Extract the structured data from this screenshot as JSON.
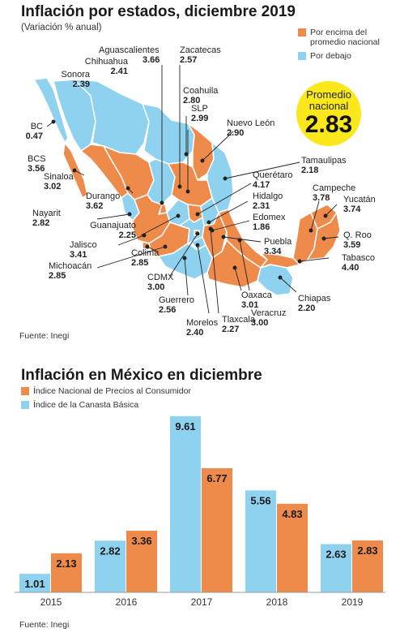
{
  "map": {
    "title": "Inflación por estados, diciembre 2019",
    "subtitle": "(Variación % anual)",
    "legend": [
      {
        "label": "Por encima del promedio nacional",
        "color": "#ee8a4a"
      },
      {
        "label": "Por debajo",
        "color": "#8fd2ef"
      }
    ],
    "average_label": "Promedio nacional",
    "average_value": "2.83",
    "source": "Fuente: Inegi",
    "states": [
      {
        "name": "BC",
        "value": "0.47",
        "status": "below"
      },
      {
        "name": "Sonora",
        "value": "2.39",
        "status": "below"
      },
      {
        "name": "Chihuahua",
        "value": "2.41",
        "status": "below"
      },
      {
        "name": "Aguascalientes",
        "value": "3.66",
        "status": "above"
      },
      {
        "name": "Zacatecas",
        "value": "2.57",
        "status": "below"
      },
      {
        "name": "Coahuila",
        "value": "2.80",
        "status": "below"
      },
      {
        "name": "SLP",
        "value": "2.99",
        "status": "above"
      },
      {
        "name": "Nuevo León",
        "value": "2.90",
        "status": "above"
      },
      {
        "name": "Tamaulipas",
        "value": "2.18",
        "status": "below"
      },
      {
        "name": "BCS",
        "value": "3.56",
        "status": "above"
      },
      {
        "name": "Sinaloa",
        "value": "3.02",
        "status": "above"
      },
      {
        "name": "Durango",
        "value": "3.62",
        "status": "above"
      },
      {
        "name": "Querétaro",
        "value": "4.17",
        "status": "above"
      },
      {
        "name": "Hidalgo",
        "value": "2.31",
        "status": "below"
      },
      {
        "name": "Edomex",
        "value": "1.86",
        "status": "below"
      },
      {
        "name": "Campeche",
        "value": "3.78",
        "status": "above"
      },
      {
        "name": "Yucatán",
        "value": "3.74",
        "status": "above"
      },
      {
        "name": "Q. Roo",
        "value": "3.59",
        "status": "above"
      },
      {
        "name": "Tabasco",
        "value": "4.40",
        "status": "above"
      },
      {
        "name": "Nayarit",
        "value": "2.82",
        "status": "below"
      },
      {
        "name": "Guanajuato",
        "value": "2.25",
        "status": "below"
      },
      {
        "name": "Jalisco",
        "value": "3.41",
        "status": "above"
      },
      {
        "name": "Colima",
        "value": "2.85",
        "status": "above"
      },
      {
        "name": "Michoacán",
        "value": "2.85",
        "status": "above"
      },
      {
        "name": "CDMX",
        "value": "3.00",
        "status": "above"
      },
      {
        "name": "Puebla",
        "value": "3.34",
        "status": "above"
      },
      {
        "name": "Guerrero",
        "value": "2.56",
        "status": "below"
      },
      {
        "name": "Morelos",
        "value": "2.40",
        "status": "below"
      },
      {
        "name": "Tlaxcala",
        "value": "2.27",
        "status": "below"
      },
      {
        "name": "Oaxaca",
        "value": "3.01",
        "status": "above"
      },
      {
        "name": "Veracruz",
        "value": "3.00",
        "status": "above"
      },
      {
        "name": "Chiapas",
        "value": "2.20",
        "status": "below"
      }
    ]
  },
  "bars": {
    "title": "Inflación en México en diciembre",
    "source": "Fuente: Inegi"
  },
  "chart_data": {
    "type": "bar",
    "title": "Inflación en México en diciembre",
    "categories": [
      "2015",
      "2016",
      "2017",
      "2018",
      "2019"
    ],
    "series": [
      {
        "name": "Índice de la Canasta Básica",
        "color": "#8fd2ef",
        "values": [
          1.01,
          2.82,
          9.61,
          5.56,
          2.63
        ]
      },
      {
        "name": "Índice Nacional de Precios al Consumidor",
        "color": "#ee8a4a",
        "values": [
          2.13,
          3.36,
          6.77,
          4.83,
          2.83
        ]
      }
    ],
    "legend_order": [
      "Índice Nacional de Precios al Consumidor",
      "Índice de la Canasta Básica"
    ],
    "legend_position": "top-left",
    "ylim": [
      0,
      10
    ],
    "grid": false
  }
}
